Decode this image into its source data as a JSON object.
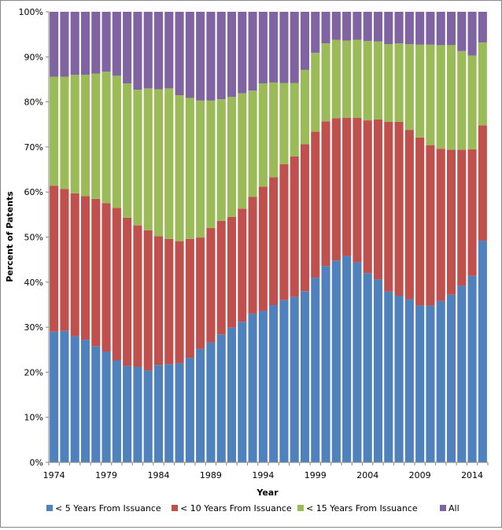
{
  "chart_data": {
    "type": "bar",
    "stacked": true,
    "percent_stacked": true,
    "title": "",
    "xlabel": "Year",
    "ylabel": "Percent of Patents",
    "ylim": [
      0,
      100
    ],
    "y_ticks": [
      "0%",
      "10%",
      "20%",
      "30%",
      "40%",
      "50%",
      "60%",
      "70%",
      "80%",
      "90%",
      "100%"
    ],
    "x_tick_labels": [
      "1974",
      "1979",
      "1984",
      "1989",
      "1994",
      "1999",
      "2004",
      "2009",
      "2014"
    ],
    "grid": false,
    "legend_position": "bottom",
    "categories": [
      1974,
      1975,
      1976,
      1977,
      1978,
      1979,
      1980,
      1981,
      1982,
      1983,
      1984,
      1985,
      1986,
      1987,
      1988,
      1989,
      1990,
      1991,
      1992,
      1993,
      1994,
      1995,
      1996,
      1997,
      1998,
      1999,
      2000,
      2001,
      2002,
      2003,
      2004,
      2005,
      2006,
      2007,
      2008,
      2009,
      2010,
      2011,
      2012,
      2013,
      2014,
      2015
    ],
    "series": [
      {
        "name": "< 5 Years From Issuance",
        "color": "#4F81BD",
        "cumulative_values": [
          29.0,
          29.2,
          28.0,
          27.2,
          25.8,
          24.6,
          22.6,
          21.4,
          21.2,
          20.4,
          21.6,
          21.8,
          22.0,
          23.2,
          25.2,
          26.6,
          28.4,
          29.9,
          31.2,
          33.0,
          33.6,
          34.9,
          36.0,
          36.7,
          38.0,
          41.0,
          43.6,
          44.8,
          45.8,
          44.4,
          42.0,
          40.6,
          37.9,
          37.0,
          36.2,
          34.8,
          34.8,
          35.8,
          37.2,
          39.2,
          41.4,
          49.2
        ]
      },
      {
        "name": "< 10 Years From Issuance",
        "color": "#C0504D",
        "cumulative_values": [
          61.4,
          60.7,
          59.7,
          59.1,
          58.5,
          57.5,
          56.5,
          54.3,
          52.6,
          51.5,
          50.2,
          49.6,
          49.1,
          49.6,
          49.9,
          52.0,
          53.6,
          54.5,
          56.3,
          58.9,
          61.2,
          63.3,
          66.2,
          67.9,
          70.6,
          73.4,
          75.7,
          76.4,
          76.5,
          76.5,
          75.9,
          76.1,
          75.6,
          75.6,
          73.8,
          72.1,
          70.4,
          69.6,
          69.4,
          69.4,
          69.5,
          74.8
        ]
      },
      {
        "name": "< 15 Years From Issuance",
        "color": "#9BBB59",
        "cumulative_values": [
          85.6,
          85.6,
          86.0,
          86.0,
          86.3,
          86.7,
          85.8,
          84.1,
          82.7,
          83.0,
          82.8,
          83.0,
          81.5,
          80.9,
          80.3,
          80.3,
          80.6,
          81.1,
          81.9,
          82.5,
          84.1,
          84.3,
          84.2,
          84.2,
          87.1,
          90.9,
          93.0,
          93.8,
          93.6,
          93.8,
          93.5,
          93.4,
          92.8,
          93.0,
          92.8,
          92.7,
          92.7,
          92.6,
          92.6,
          91.3,
          90.3,
          93.2
        ]
      },
      {
        "name": "All",
        "color": "#8064A2",
        "cumulative_values": [
          100,
          100,
          100,
          100,
          100,
          100,
          100,
          100,
          100,
          100,
          100,
          100,
          100,
          100,
          100,
          100,
          100,
          100,
          100,
          100,
          100,
          100,
          100,
          100,
          100,
          100,
          100,
          100,
          100,
          100,
          100,
          100,
          100,
          100,
          100,
          100,
          100,
          100,
          100,
          100,
          100,
          100
        ]
      }
    ]
  }
}
